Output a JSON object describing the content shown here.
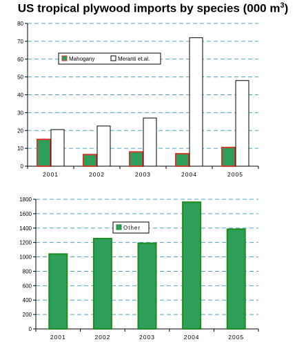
{
  "title": {
    "text": "US tropical plywood imports by species (000 m",
    "sup": "3",
    "close": ")"
  },
  "colors": {
    "mahogany_fill": "#2e9e5b",
    "mahogany_stroke": "#d23a2a",
    "other_fill": "#2e9e5b",
    "other_stroke": "#1f8a1f",
    "meranti_fill": "#ffffff",
    "meranti_stroke": "#000000",
    "grid": "#4aa3c3"
  },
  "chart_data": [
    {
      "type": "bar",
      "categories": [
        "2001",
        "2002",
        "2003",
        "2004",
        "2005"
      ],
      "series": [
        {
          "name": "Mahogany",
          "values": [
            15,
            6.5,
            8,
            7,
            10.5
          ]
        },
        {
          "name": "Meranti et.al.",
          "values": [
            20.5,
            22.5,
            27,
            72,
            48
          ]
        }
      ],
      "ylim": [
        0,
        80
      ],
      "yticks": [
        "0",
        "10",
        "20",
        "30",
        "40",
        "50",
        "60",
        "70",
        "80"
      ],
      "grid": true,
      "legend": "upper-left"
    },
    {
      "type": "bar",
      "categories": [
        "2001",
        "2002",
        "2003",
        "2004",
        "2005"
      ],
      "series": [
        {
          "name": "Other",
          "values": [
            1040,
            1255,
            1190,
            1760,
            1385
          ]
        }
      ],
      "ylim": [
        0,
        1800
      ],
      "yticks": [
        "0",
        "200",
        "400",
        "600",
        "800",
        "1000",
        "1200",
        "1400",
        "1600",
        "1800"
      ],
      "grid": true,
      "legend": "upper-center"
    }
  ]
}
